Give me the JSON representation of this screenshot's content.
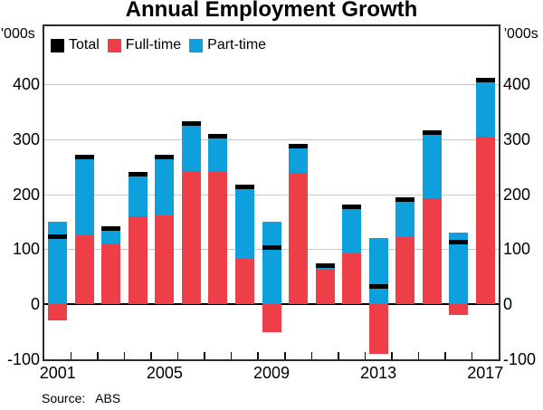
{
  "title": "Annual Employment Growth",
  "units": {
    "left": "'000s",
    "right": "'000s"
  },
  "source": "Source:   ABS",
  "colors": {
    "total": "#000000",
    "full_time": "#ee3e47",
    "part_time": "#0da0dc",
    "grid": "#c7c7c7",
    "frame": "#2b2b2b"
  },
  "legend": {
    "items": [
      {
        "label": "Total",
        "key": "total"
      },
      {
        "label": "Full-time",
        "key": "full_time"
      },
      {
        "label": "Part-time",
        "key": "part_time"
      }
    ]
  },
  "chart_data": {
    "type": "bar",
    "stacked": true,
    "title": "Annual Employment Growth",
    "unit": "'000s",
    "categories": [
      2001,
      2002,
      2003,
      2004,
      2005,
      2006,
      2007,
      2008,
      2009,
      2010,
      2011,
      2012,
      2013,
      2014,
      2015,
      2016,
      2017
    ],
    "series": [
      {
        "name": "Full-time",
        "role": "bar",
        "color_key": "full_time",
        "values": [
          -30,
          125,
          110,
          160,
          162,
          242,
          240,
          82,
          -50,
          238,
          64,
          92,
          -90,
          122,
          193,
          -20,
          305
        ]
      },
      {
        "name": "Part-time",
        "role": "bar",
        "color_key": "part_time",
        "values": [
          150,
          140,
          25,
          73,
          103,
          83,
          62,
          128,
          150,
          47,
          4,
          83,
          120,
          65,
          117,
          130,
          100
        ]
      },
      {
        "name": "Total",
        "role": "marker",
        "color_key": "total",
        "values": [
          120,
          265,
          135,
          233,
          265,
          325,
          302,
          210,
          100,
          285,
          68,
          175,
          30,
          187,
          310,
          110,
          405
        ]
      }
    ],
    "y_ticks": [
      -100,
      0,
      100,
      200,
      300,
      400
    ],
    "ylim": [
      -100,
      505
    ],
    "x_labeled_years": [
      2001,
      2005,
      2009,
      2013,
      2017
    ],
    "grid": true,
    "legend_position": "top-left-inside"
  }
}
